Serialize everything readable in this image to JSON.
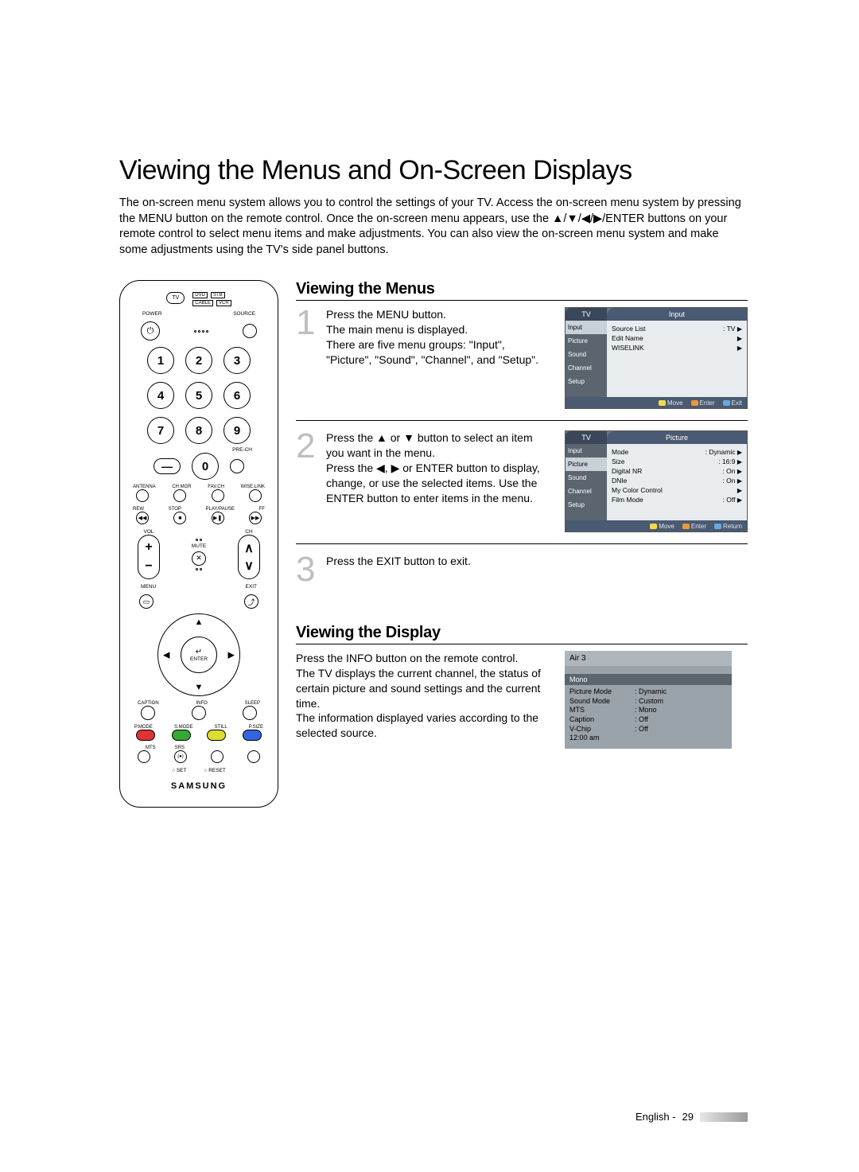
{
  "page": {
    "title": "Viewing the Menus and On-Screen Displays",
    "intro": "The on-screen menu system allows you to control the settings of your TV. Access the on-screen menu system by pressing the MENU button on the remote control. Once the on-screen menu appears, use the ▲/▼/◀/▶/ENTER buttons on your remote control to select menu items and make adjustments. You can also view the on-screen menu system and make some adjustments using the TV's side panel buttons.",
    "footer_lang": "English -",
    "footer_page": "29"
  },
  "remote": {
    "top_tv": "TV",
    "minis": {
      "dvd": "DVD",
      "stb": "STB",
      "cable": "CABLE",
      "vcr": "VCR"
    },
    "power_label": "POWER",
    "source_label": "SOURCE",
    "numbers": [
      "1",
      "2",
      "3",
      "4",
      "5",
      "6",
      "7",
      "8",
      "9",
      "0"
    ],
    "pre_ch": "PRE-CH",
    "row_labels": {
      "antenna": "ANTENNA",
      "chmgr": "CH MGR",
      "favch": "FAV.CH",
      "wiselink": "WISE.LINK"
    },
    "play_labels": {
      "rew": "REW",
      "stop": "STOP",
      "pp": "PLAY/PAUSE",
      "ff": "FF"
    },
    "vol": "VOL",
    "ch": "CH",
    "mute": "MUTE",
    "menu": "MENU",
    "exit": "EXIT",
    "enter": "ENTER",
    "caption": "CAPTION",
    "info": "INFO",
    "sleep": "SLEEP",
    "pmode": "P.MODE",
    "smode": "S.MODE",
    "still": "STILL",
    "psize": "P.SIZE",
    "mts": "MTS",
    "srs": "SRS",
    "set": "SET",
    "reset": "RESET",
    "brand": "SAMSUNG"
  },
  "sectionA": {
    "heading": "Viewing the Menus",
    "step1_num": "1",
    "step1": "Press the MENU button.\nThe main menu is displayed.\nThere are five menu groups: \"Input\", \"Picture\", \"Sound\", \"Channel\", and \"Setup\".",
    "step2_num": "2",
    "step2": "Press the ▲ or ▼ button to select an item you want in the menu.\nPress the ◀, ▶ or ENTER button to display, change, or use the selected items. Use the ENTER button to enter items in the menu.",
    "step3_num": "3",
    "step3": "Press the EXIT button to exit."
  },
  "osd1": {
    "tab_left": "TV",
    "tab_right": "Input",
    "side": [
      "Input",
      "Picture",
      "Sound",
      "Channel",
      "Setup"
    ],
    "active_index": 0,
    "lines": [
      {
        "label": "Source List",
        "value": ": TV",
        "arrow": true
      },
      {
        "label": "Edit Name",
        "value": "",
        "arrow": true
      },
      {
        "label": "WISELINK",
        "value": "",
        "arrow": true
      }
    ],
    "foot": {
      "move": "Move",
      "enter": "Enter",
      "exit": "Exit"
    }
  },
  "osd2": {
    "tab_left": "TV",
    "tab_right": "Picture",
    "side": [
      "Input",
      "Picture",
      "Sound",
      "Channel",
      "Setup"
    ],
    "active_index": 1,
    "lines": [
      {
        "label": "Mode",
        "value": ": Dynamic",
        "arrow": true
      },
      {
        "label": "Size",
        "value": ": 16:9",
        "arrow": true
      },
      {
        "label": "Digital NR",
        "value": ": On",
        "arrow": true
      },
      {
        "label": "DNIe",
        "value": ": On",
        "arrow": true
      },
      {
        "label": "My Color Control",
        "value": "",
        "arrow": true
      },
      {
        "label": "Film Mode",
        "value": ": Off",
        "arrow": true
      }
    ],
    "foot": {
      "move": "Move",
      "enter": "Enter",
      "ret": "Return"
    }
  },
  "sectionB": {
    "heading": "Viewing the Display",
    "text": "Press the INFO button on the remote control.\nThe TV displays the current channel, the status of certain picture and sound settings and the current time.\nThe information displayed varies according to the selected source."
  },
  "info": {
    "title": "Air 3",
    "bar": "Mono",
    "rows": [
      {
        "k": "Picture Mode",
        "v": ": Dynamic"
      },
      {
        "k": "Sound Mode",
        "v": ": Custom"
      },
      {
        "k": "MTS",
        "v": ": Mono"
      },
      {
        "k": "Caption",
        "v": ": Off"
      },
      {
        "k": "V-Chip",
        "v": ": Off"
      },
      {
        "k": "12:00 am",
        "v": ""
      }
    ]
  },
  "colors": {
    "osd_side": "#5a6570",
    "osd_main": "#e8ecef",
    "osd_tab_dark": "#3a475a",
    "osd_tab": "#4a5a72",
    "osd_active": "#c8d0d8",
    "info_bg": "#9aa3aa",
    "info_hdr": "#aeb6bc",
    "step_num": "#bfbfbf",
    "foot_move": "#f5d94a",
    "foot_enter": "#e89a3c",
    "foot_exit": "#6aa8e0"
  }
}
